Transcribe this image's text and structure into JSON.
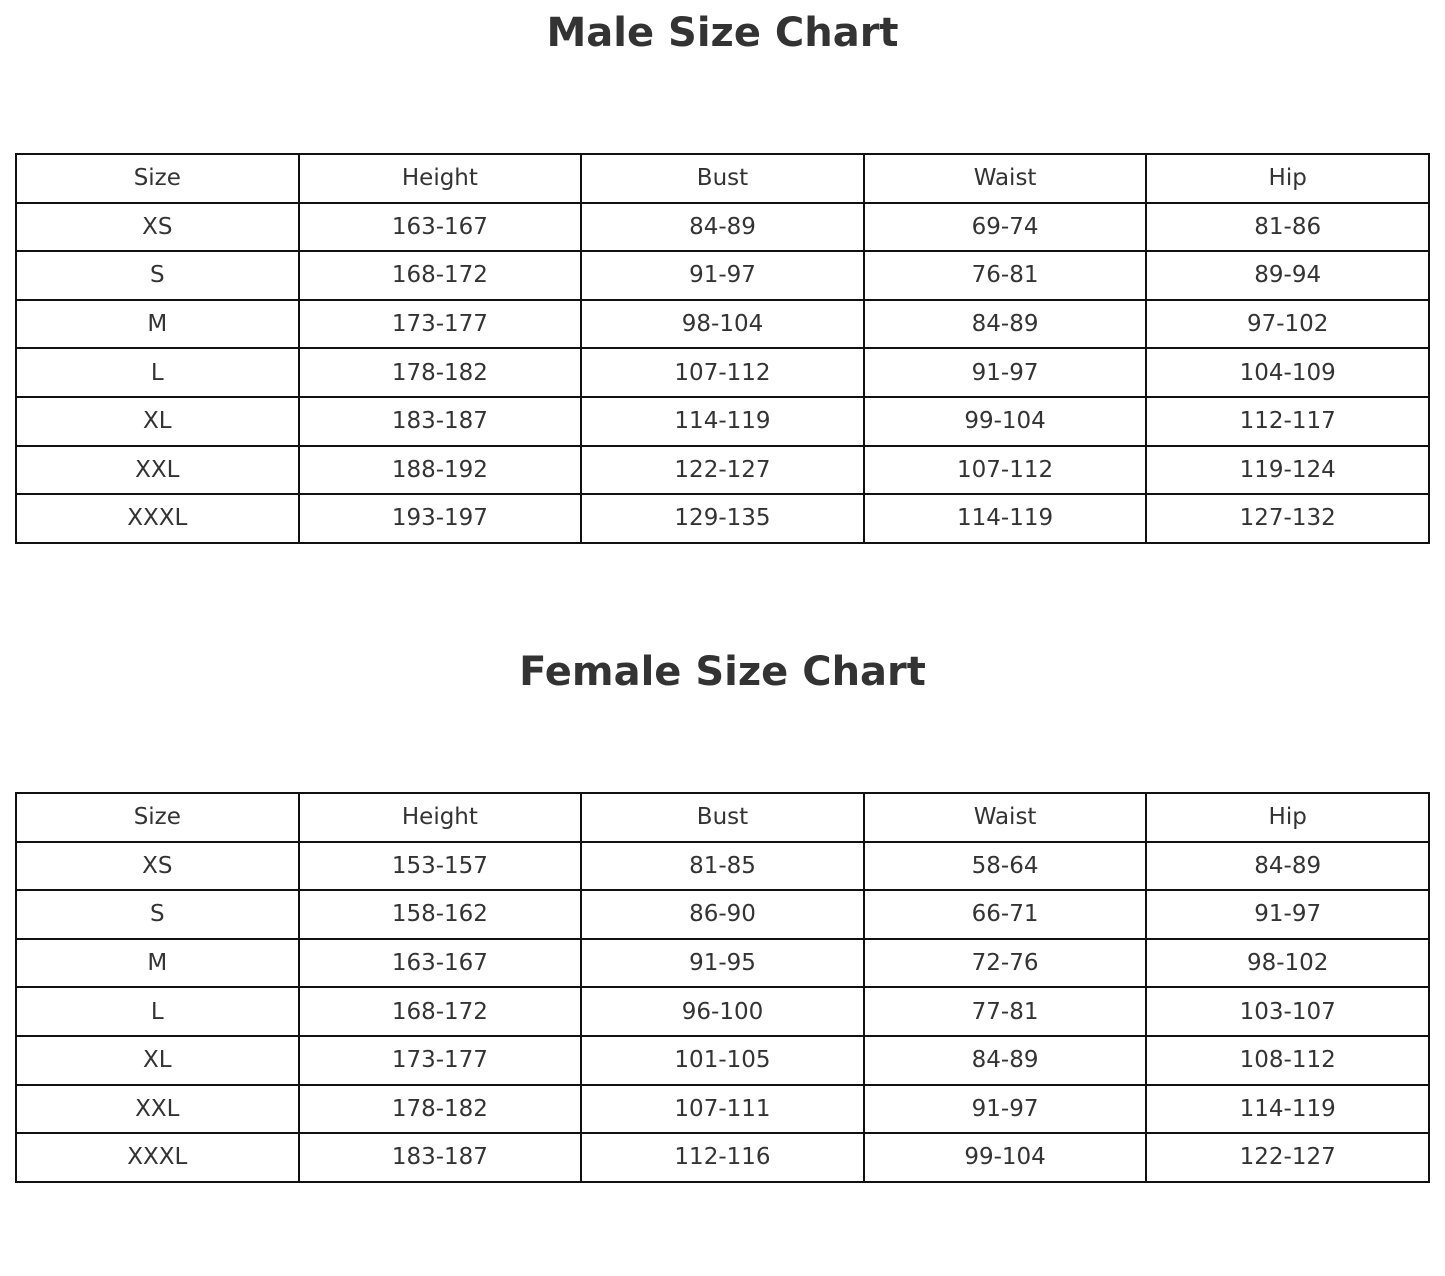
{
  "chart_data": [
    {
      "type": "table",
      "title": "Male Size Chart",
      "columns": [
        "Size",
        "Height",
        "Bust",
        "Waist",
        "Hip"
      ],
      "rows": [
        [
          "XS",
          "163-167",
          "84-89",
          "69-74",
          "81-86"
        ],
        [
          "S",
          "168-172",
          "91-97",
          "76-81",
          "89-94"
        ],
        [
          "M",
          "173-177",
          "98-104",
          "84-89",
          "97-102"
        ],
        [
          "L",
          "178-182",
          "107-112",
          "91-97",
          "104-109"
        ],
        [
          "XL",
          "183-187",
          "114-119",
          "99-104",
          "112-117"
        ],
        [
          "XXL",
          "188-192",
          "122-127",
          "107-112",
          "119-124"
        ],
        [
          "XXXL",
          "193-197",
          "129-135",
          "114-119",
          "127-132"
        ]
      ]
    },
    {
      "type": "table",
      "title": "Female Size Chart",
      "columns": [
        "Size",
        "Height",
        "Bust",
        "Waist",
        "Hip"
      ],
      "rows": [
        [
          "XS",
          "153-157",
          "81-85",
          "58-64",
          "84-89"
        ],
        [
          "S",
          "158-162",
          "86-90",
          "66-71",
          "91-97"
        ],
        [
          "M",
          "163-167",
          "91-95",
          "72-76",
          "98-102"
        ],
        [
          "L",
          "168-172",
          "96-100",
          "77-81",
          "103-107"
        ],
        [
          "XL",
          "173-177",
          "101-105",
          "84-89",
          "108-112"
        ],
        [
          "XXL",
          "178-182",
          "107-111",
          "91-97",
          "114-119"
        ],
        [
          "XXXL",
          "183-187",
          "112-116",
          "99-104",
          "122-127"
        ]
      ]
    }
  ]
}
